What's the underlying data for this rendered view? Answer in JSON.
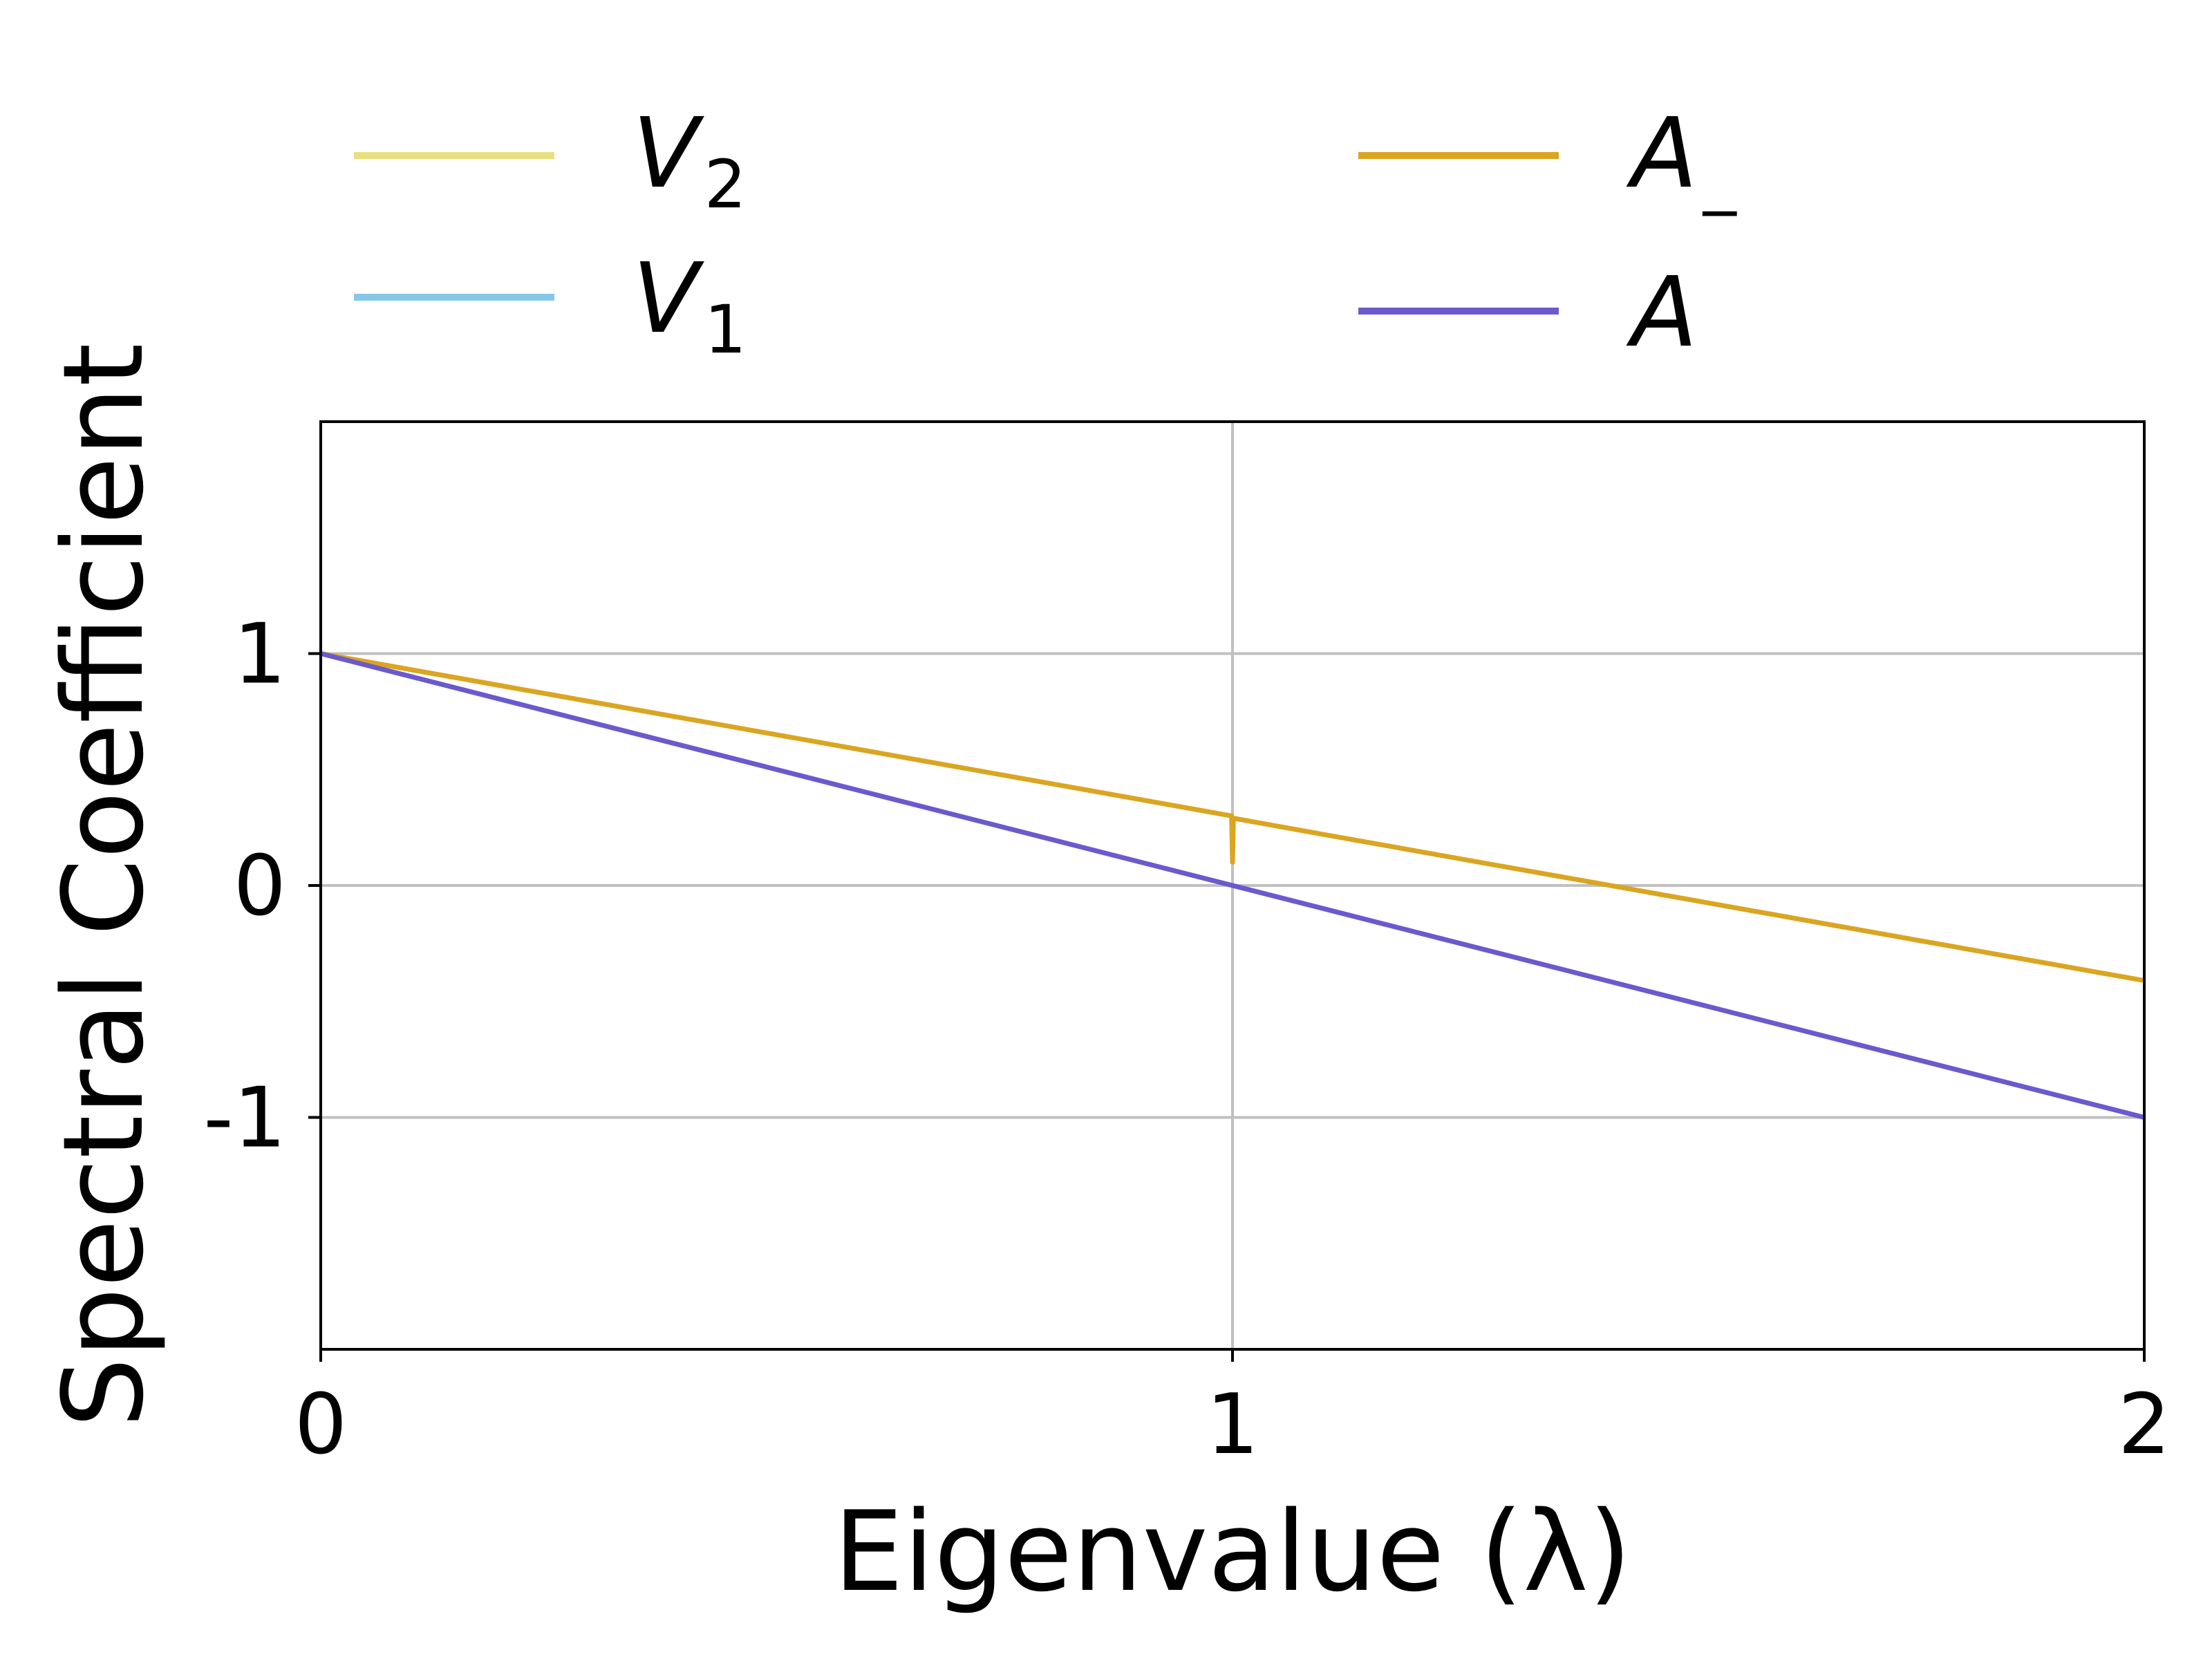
{
  "chart_data": {
    "type": "line",
    "xlabel": "Eigenvalue (λ)",
    "ylabel": "Spectral Coefficient",
    "xlim": [
      0,
      2
    ],
    "ylim": [
      -2,
      2
    ],
    "x_ticks": [
      0,
      1,
      2
    ],
    "x_tick_labels": [
      "0",
      "1",
      "2"
    ],
    "y_ticks": [
      -1,
      0,
      1
    ],
    "y_tick_labels": [
      "-1",
      "0",
      "1"
    ],
    "grid": true,
    "legend_position": "top, above plot, two columns",
    "series": [
      {
        "name": "V",
        "subscript": "2",
        "color": "#e8df80",
        "x": [],
        "y": []
      },
      {
        "name": "V",
        "subscript": "1",
        "color": "#87c8e8",
        "x": [],
        "y": []
      },
      {
        "name": "A",
        "subscript": "_",
        "color": "#daa520",
        "x": [
          0,
          0.1,
          0.2,
          0.3,
          0.4,
          0.5,
          0.6,
          0.7,
          0.8,
          0.9,
          0.999,
          1.0,
          1.001,
          1.1,
          1.2,
          1.3,
          1.4,
          1.5,
          1.6,
          1.7,
          1.8,
          1.9,
          2.0
        ],
        "y": [
          1.0,
          0.93,
          0.86,
          0.79,
          0.72,
          0.65,
          0.58,
          0.51,
          0.44,
          0.37,
          0.3,
          0.1,
          0.29,
          0.22,
          0.15,
          0.08,
          0.01,
          -0.06,
          -0.13,
          -0.2,
          -0.27,
          -0.34,
          -0.41
        ]
      },
      {
        "name": "A",
        "subscript": "",
        "color": "#6a5acd",
        "x": [
          0,
          2
        ],
        "y": [
          1,
          -1
        ]
      }
    ]
  }
}
